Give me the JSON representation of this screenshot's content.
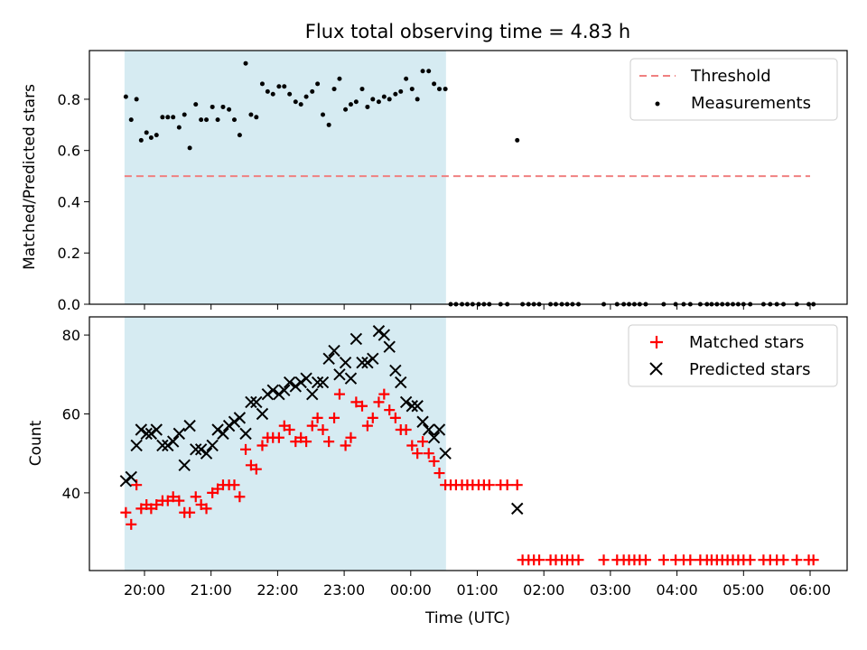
{
  "chart_data": {
    "type": "scatter",
    "title": "Flux total observing time = 4.83 h",
    "xlabel": "Time (UTC)",
    "x_ticks": [
      "20:00",
      "21:00",
      "22:00",
      "23:00",
      "00:00",
      "01:00",
      "02:00",
      "03:00",
      "04:00",
      "05:00",
      "06:00"
    ],
    "x_tick_hours": [
      20,
      21,
      22,
      23,
      24,
      25,
      26,
      27,
      28,
      29,
      30
    ],
    "observing_window": {
      "start_hour": 19.7,
      "end_hour": 24.53,
      "color": "#add8e6"
    },
    "panels": [
      {
        "ylabel": "Matched/Predicted stars",
        "ylim": [
          0,
          0.99
        ],
        "y_ticks": [
          0.0,
          0.2,
          0.4,
          0.6,
          0.8
        ],
        "y_tick_labels": [
          "0.0",
          "0.2",
          "0.4",
          "0.6",
          "0.8"
        ],
        "legend_position": "top-right",
        "threshold": {
          "name": "Threshold",
          "value": 0.5,
          "x_range": [
            19.7,
            30.0
          ],
          "color": "#f08080"
        },
        "measurements": {
          "name": "Measurements",
          "color": "#000000",
          "x": [
            19.72,
            19.8,
            19.88,
            19.95,
            20.03,
            20.1,
            20.18,
            20.27,
            20.35,
            20.43,
            20.52,
            20.6,
            20.68,
            20.77,
            20.85,
            20.93,
            21.02,
            21.1,
            21.18,
            21.27,
            21.35,
            21.43,
            21.52,
            21.6,
            21.68,
            21.77,
            21.85,
            21.93,
            22.02,
            22.1,
            22.18,
            22.27,
            22.35,
            22.43,
            22.52,
            22.6,
            22.68,
            22.77,
            22.85,
            22.93,
            23.02,
            23.1,
            23.18,
            23.27,
            23.35,
            23.43,
            23.52,
            23.6,
            23.68,
            23.77,
            23.85,
            23.93,
            24.02,
            24.1,
            24.18,
            24.27,
            24.35,
            24.43,
            24.52,
            24.6,
            24.68,
            24.77,
            24.85,
            24.93,
            25.02,
            25.1,
            25.18,
            25.35,
            25.45,
            25.6,
            25.68,
            25.77,
            25.85,
            25.93,
            26.1,
            26.18,
            26.27,
            26.35,
            26.43,
            26.52,
            26.9,
            27.1,
            27.2,
            27.28,
            27.36,
            27.44,
            27.53,
            27.8,
            27.98,
            28.1,
            28.2,
            28.35,
            28.45,
            28.52,
            28.6,
            28.68,
            28.76,
            28.84,
            28.92,
            29.0,
            29.1,
            29.3,
            29.4,
            29.5,
            29.6,
            29.8,
            29.98,
            30.05
          ],
          "y": [
            0.81,
            0.72,
            0.8,
            0.64,
            0.67,
            0.65,
            0.66,
            0.73,
            0.73,
            0.73,
            0.69,
            0.74,
            0.61,
            0.78,
            0.72,
            0.72,
            0.77,
            0.72,
            0.77,
            0.76,
            0.72,
            0.66,
            0.94,
            0.74,
            0.73,
            0.86,
            0.83,
            0.82,
            0.85,
            0.85,
            0.82,
            0.79,
            0.78,
            0.81,
            0.83,
            0.86,
            0.74,
            0.7,
            0.84,
            0.88,
            0.76,
            0.78,
            0.79,
            0.84,
            0.77,
            0.8,
            0.79,
            0.81,
            0.8,
            0.82,
            0.83,
            0.88,
            0.84,
            0.8,
            0.91,
            0.91,
            0.86,
            0.84,
            0.84,
            0.0,
            0.0,
            0.0,
            0.0,
            0.0,
            0.0,
            0.0,
            0.0,
            0.0,
            0.0,
            0.64,
            0.0,
            0.0,
            0.0,
            0.0,
            0.0,
            0.0,
            0.0,
            0.0,
            0.0,
            0.0,
            0.0,
            0.0,
            0.0,
            0.0,
            0.0,
            0.0,
            0.0,
            0.0,
            0.0,
            0.0,
            0.0,
            0.0,
            0.0,
            0.0,
            0.0,
            0.0,
            0.0,
            0.0,
            0.0,
            0.0,
            0.0,
            0.0,
            0.0,
            0.0,
            0.0,
            0.0,
            0.0,
            0.0
          ]
        }
      },
      {
        "ylabel": "Count",
        "ylim": [
          20.3,
          84.6
        ],
        "y_ticks": [
          40,
          60,
          80
        ],
        "y_tick_labels": [
          "40",
          "60",
          "80"
        ],
        "legend_position": "top-right",
        "matched": {
          "name": "Matched stars",
          "color": "#ff0000",
          "x": [
            19.72,
            19.8,
            19.88,
            19.95,
            20.03,
            20.1,
            20.18,
            20.27,
            20.35,
            20.43,
            20.52,
            20.6,
            20.68,
            20.77,
            20.85,
            20.93,
            21.02,
            21.1,
            21.18,
            21.27,
            21.35,
            21.43,
            21.52,
            21.6,
            21.68,
            21.77,
            21.85,
            21.93,
            22.02,
            22.1,
            22.18,
            22.27,
            22.35,
            22.43,
            22.52,
            22.6,
            22.68,
            22.77,
            22.85,
            22.93,
            23.02,
            23.1,
            23.18,
            23.27,
            23.35,
            23.43,
            23.52,
            23.6,
            23.68,
            23.77,
            23.85,
            23.93,
            24.02,
            24.1,
            24.18,
            24.27,
            24.35,
            24.43,
            24.52,
            24.6,
            24.68,
            24.77,
            24.85,
            24.93,
            25.02,
            25.1,
            25.18,
            25.35,
            25.45,
            25.6,
            25.68,
            25.77,
            25.85,
            25.93,
            26.1,
            26.18,
            26.27,
            26.35,
            26.43,
            26.52,
            26.9,
            27.1,
            27.2,
            27.28,
            27.36,
            27.44,
            27.53,
            27.8,
            27.98,
            28.1,
            28.2,
            28.35,
            28.45,
            28.52,
            28.6,
            28.68,
            28.76,
            28.84,
            28.92,
            29.0,
            29.1,
            29.3,
            29.4,
            29.5,
            29.6,
            29.8,
            29.98,
            30.05
          ],
          "y": [
            35,
            32,
            42,
            36,
            37,
            36,
            37,
            38,
            38,
            39,
            38,
            35,
            35,
            39,
            37,
            36,
            40,
            41,
            42,
            42,
            42,
            39,
            51,
            47,
            46,
            52,
            54,
            54,
            54,
            57,
            56,
            53,
            54,
            53,
            57,
            59,
            56,
            53,
            59,
            65,
            52,
            54,
            63,
            62,
            57,
            59,
            63,
            65,
            61,
            59,
            56,
            56,
            52,
            50,
            53,
            50,
            48,
            45,
            42,
            42,
            42,
            42,
            42,
            42,
            42,
            42,
            42,
            42,
            42,
            42,
            23,
            23,
            23,
            23,
            23,
            23,
            23,
            23,
            23,
            23,
            23,
            23,
            23,
            23,
            23,
            23,
            23,
            23,
            23,
            23,
            23,
            23,
            23,
            23,
            23,
            23,
            23,
            23,
            23,
            23,
            23,
            23,
            23,
            23,
            23,
            23,
            23,
            23
          ]
        },
        "predicted": {
          "name": "Predicted stars",
          "color": "#000000",
          "x": [
            19.72,
            19.8,
            19.88,
            19.95,
            20.03,
            20.1,
            20.18,
            20.27,
            20.35,
            20.43,
            20.52,
            20.6,
            20.68,
            20.77,
            20.85,
            20.93,
            21.02,
            21.1,
            21.18,
            21.27,
            21.35,
            21.43,
            21.52,
            21.6,
            21.68,
            21.77,
            21.85,
            21.93,
            22.02,
            22.1,
            22.18,
            22.27,
            22.35,
            22.43,
            22.52,
            22.6,
            22.68,
            22.77,
            22.85,
            22.93,
            23.02,
            23.1,
            23.18,
            23.27,
            23.35,
            23.43,
            23.52,
            23.6,
            23.68,
            23.77,
            23.85,
            23.93,
            24.02,
            24.1,
            24.18,
            24.27,
            24.35,
            24.43,
            24.52,
            25.6
          ],
          "y": [
            43,
            44,
            52,
            56,
            55,
            55,
            56,
            52,
            52,
            53,
            55,
            47,
            57,
            51,
            51,
            50,
            52,
            56,
            55,
            57,
            58,
            59,
            55,
            63,
            63,
            60,
            65,
            66,
            65,
            66,
            68,
            67,
            68,
            69,
            65,
            68,
            68,
            74,
            76,
            70,
            73,
            69,
            79,
            73,
            73,
            74,
            81,
            80,
            77,
            71,
            68,
            63,
            62,
            62,
            58,
            56,
            54,
            56,
            50,
            36
          ]
        }
      }
    ]
  }
}
